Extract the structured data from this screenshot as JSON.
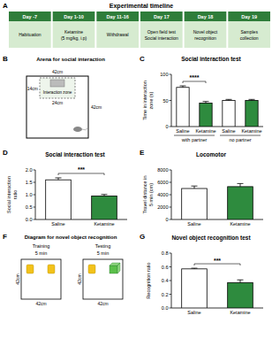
{
  "panel_labels": [
    "A",
    "B",
    "C",
    "D",
    "E",
    "F",
    "G"
  ],
  "timeline": {
    "title": "Experimental timeline",
    "steps": [
      {
        "day": "Day -7",
        "lines": [
          "Habituation"
        ]
      },
      {
        "day": "Day 1-10",
        "lines": [
          "Ketamine",
          "(5 mg/kg, i.p)"
        ]
      },
      {
        "day": "Day 11-16",
        "lines": [
          "Withdrawal"
        ]
      },
      {
        "day": "Day 17",
        "lines": [
          "Open field test",
          "Social interaction"
        ]
      },
      {
        "day": "Day 18",
        "lines": [
          "Novel object",
          "recognition"
        ]
      },
      {
        "day": "Day 19",
        "lines": [
          "Samples",
          "collection"
        ]
      }
    ]
  },
  "arena": {
    "title": "Arena for social interaction",
    "zone_label": "Interaction zone",
    "zone_width": "24cm",
    "zone_height": "14cm",
    "size_label": "42cm"
  },
  "nor_diagram": {
    "title": "Diagram for novel object recognition",
    "phases": [
      {
        "name": "Training",
        "duration": "5 min"
      },
      {
        "name": "Testing",
        "duration": "5 min"
      }
    ],
    "size_label": "42cm"
  },
  "chart_data": [
    {
      "type": "bar",
      "title": "Social interaction test",
      "ylabel": "Time in interaction zone (s)",
      "categories": [
        "Saline",
        "Ketamine",
        "Saline",
        "Ketamine"
      ],
      "group_labels": [
        "with partner",
        "no partner"
      ],
      "values": [
        75,
        45,
        50,
        50
      ],
      "errors": [
        3,
        3,
        2,
        2
      ],
      "colors": [
        "#ffffff",
        "#2e8b3e",
        "#ffffff",
        "#2e8b3e"
      ],
      "ylim": [
        0,
        100
      ],
      "yticks": [
        0,
        50,
        100
      ],
      "annotations": [
        "****"
      ]
    },
    {
      "type": "bar",
      "title": "Social interaction test",
      "ylabel": "Social interaction ratio",
      "categories": [
        "Saline",
        "Ketamine"
      ],
      "values": [
        1.6,
        0.95
      ],
      "errors": [
        0.08,
        0.06
      ],
      "colors": [
        "#ffffff",
        "#2e8b3e"
      ],
      "ylim": [
        0,
        2
      ],
      "yticks": [
        {
          "value": 0,
          "label": "0.0"
        },
        {
          "value": 0.5,
          "label": "0.5"
        },
        {
          "value": 1,
          "label": "1.0"
        },
        {
          "value": 1.5,
          "label": "1.5"
        },
        {
          "value": 2,
          "label": "2.0"
        }
      ],
      "annotations": [
        "***"
      ]
    },
    {
      "type": "bar",
      "title": "Locomotor",
      "ylabel": "Travel distance in 5 min (cm)",
      "categories": [
        "Saline",
        "Ketamine"
      ],
      "values": [
        5000,
        5300
      ],
      "errors": [
        400,
        500
      ],
      "colors": [
        "#ffffff",
        "#2e8b3e"
      ],
      "ylim": [
        0,
        8000
      ],
      "yticks": [
        0,
        2000,
        4000,
        6000,
        8000
      ]
    },
    {
      "type": "bar",
      "title": "Novel object recognition test",
      "ylabel": "Recognition ratio",
      "categories": [
        "Saline",
        "Ketamine"
      ],
      "values": [
        0.57,
        0.37
      ],
      "errors": [
        0.01,
        0.04
      ],
      "colors": [
        "#ffffff",
        "#2e8b3e"
      ],
      "ylim": [
        0,
        0.8
      ],
      "yticks": [
        {
          "value": 0,
          "label": "0.0"
        },
        {
          "value": 0.2,
          "label": "0.2"
        },
        {
          "value": 0.4,
          "label": "0.4"
        },
        {
          "value": 0.6,
          "label": "0.6"
        },
        {
          "value": 0.8,
          "label": "0.8"
        }
      ],
      "annotations": [
        "***"
      ]
    }
  ]
}
